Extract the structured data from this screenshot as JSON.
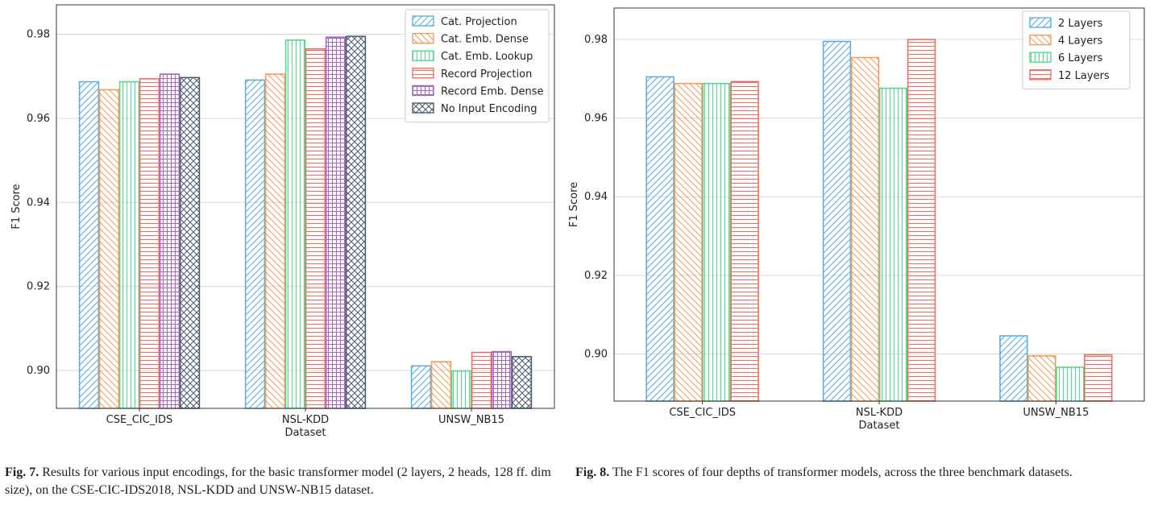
{
  "chart_data": [
    {
      "type": "bar",
      "xlabel": "Dataset",
      "ylabel": "F1 Score",
      "categories": [
        "CSE_CIC_IDS",
        "NSL-KDD",
        "UNSW_NB15"
      ],
      "ylim": [
        0.891,
        0.987
      ],
      "yticks": [
        "0.90",
        "0.92",
        "0.94",
        "0.96",
        "0.98"
      ],
      "grid": true,
      "legend_position": "top-right",
      "series": [
        {
          "name": "Cat. Projection",
          "values": [
            0.9687,
            0.9691,
            0.9011
          ],
          "color": "#5DADE2",
          "pattern": "diag-right"
        },
        {
          "name": "Cat. Emb. Dense",
          "values": [
            0.9668,
            0.9705,
            0.9021
          ],
          "color": "#F39C5A",
          "pattern": "diag-left"
        },
        {
          "name": "Cat. Emb. Lookup",
          "values": [
            0.9687,
            0.9786,
            0.8999
          ],
          "color": "#58D68D",
          "pattern": "vertical"
        },
        {
          "name": "Record Projection",
          "values": [
            0.9694,
            0.9765,
            0.9043
          ],
          "color": "#EC7063",
          "pattern": "horizontal"
        },
        {
          "name": "Record Emb. Dense",
          "values": [
            0.9705,
            0.9793,
            0.9045
          ],
          "color": "#A569BD",
          "pattern": "grid"
        },
        {
          "name": "No Input Encoding",
          "values": [
            0.9697,
            0.9795,
            0.9033
          ],
          "color": "#4D5E70",
          "pattern": "crosshatch"
        }
      ]
    },
    {
      "type": "bar",
      "xlabel": "Dataset",
      "ylabel": "F1 Score",
      "categories": [
        "CSE_CIC_IDS",
        "NSL-KDD",
        "UNSW_NB15"
      ],
      "ylim": [
        0.888,
        0.988
      ],
      "yticks": [
        "0.90",
        "0.92",
        "0.94",
        "0.96",
        "0.98"
      ],
      "grid": true,
      "legend_position": "top-right",
      "series": [
        {
          "name": "2 Layers",
          "values": [
            0.9705,
            0.9795,
            0.9046
          ],
          "color": "#5DADE2",
          "pattern": "diag-right"
        },
        {
          "name": "4 Layers",
          "values": [
            0.9688,
            0.9754,
            0.8995
          ],
          "color": "#F39C5A",
          "pattern": "diag-left"
        },
        {
          "name": "6 Layers",
          "values": [
            0.9688,
            0.9676,
            0.8966
          ],
          "color": "#58D68D",
          "pattern": "vertical"
        },
        {
          "name": "12 Layers",
          "values": [
            0.9693,
            0.98,
            0.8998
          ],
          "color": "#EC7063",
          "pattern": "horizontal"
        }
      ]
    }
  ],
  "captions": [
    {
      "fig": "Fig. 7.",
      "text": "Results for various input encodings, for the basic transformer model (2 layers, 2 heads, 128 ff. dim size), on the CSE-CIC-IDS2018, NSL-KDD and UNSW-NB15 dataset."
    },
    {
      "fig": "Fig. 8.",
      "text": "The F1 scores of four depths of transformer models, across the three benchmark datasets."
    }
  ]
}
